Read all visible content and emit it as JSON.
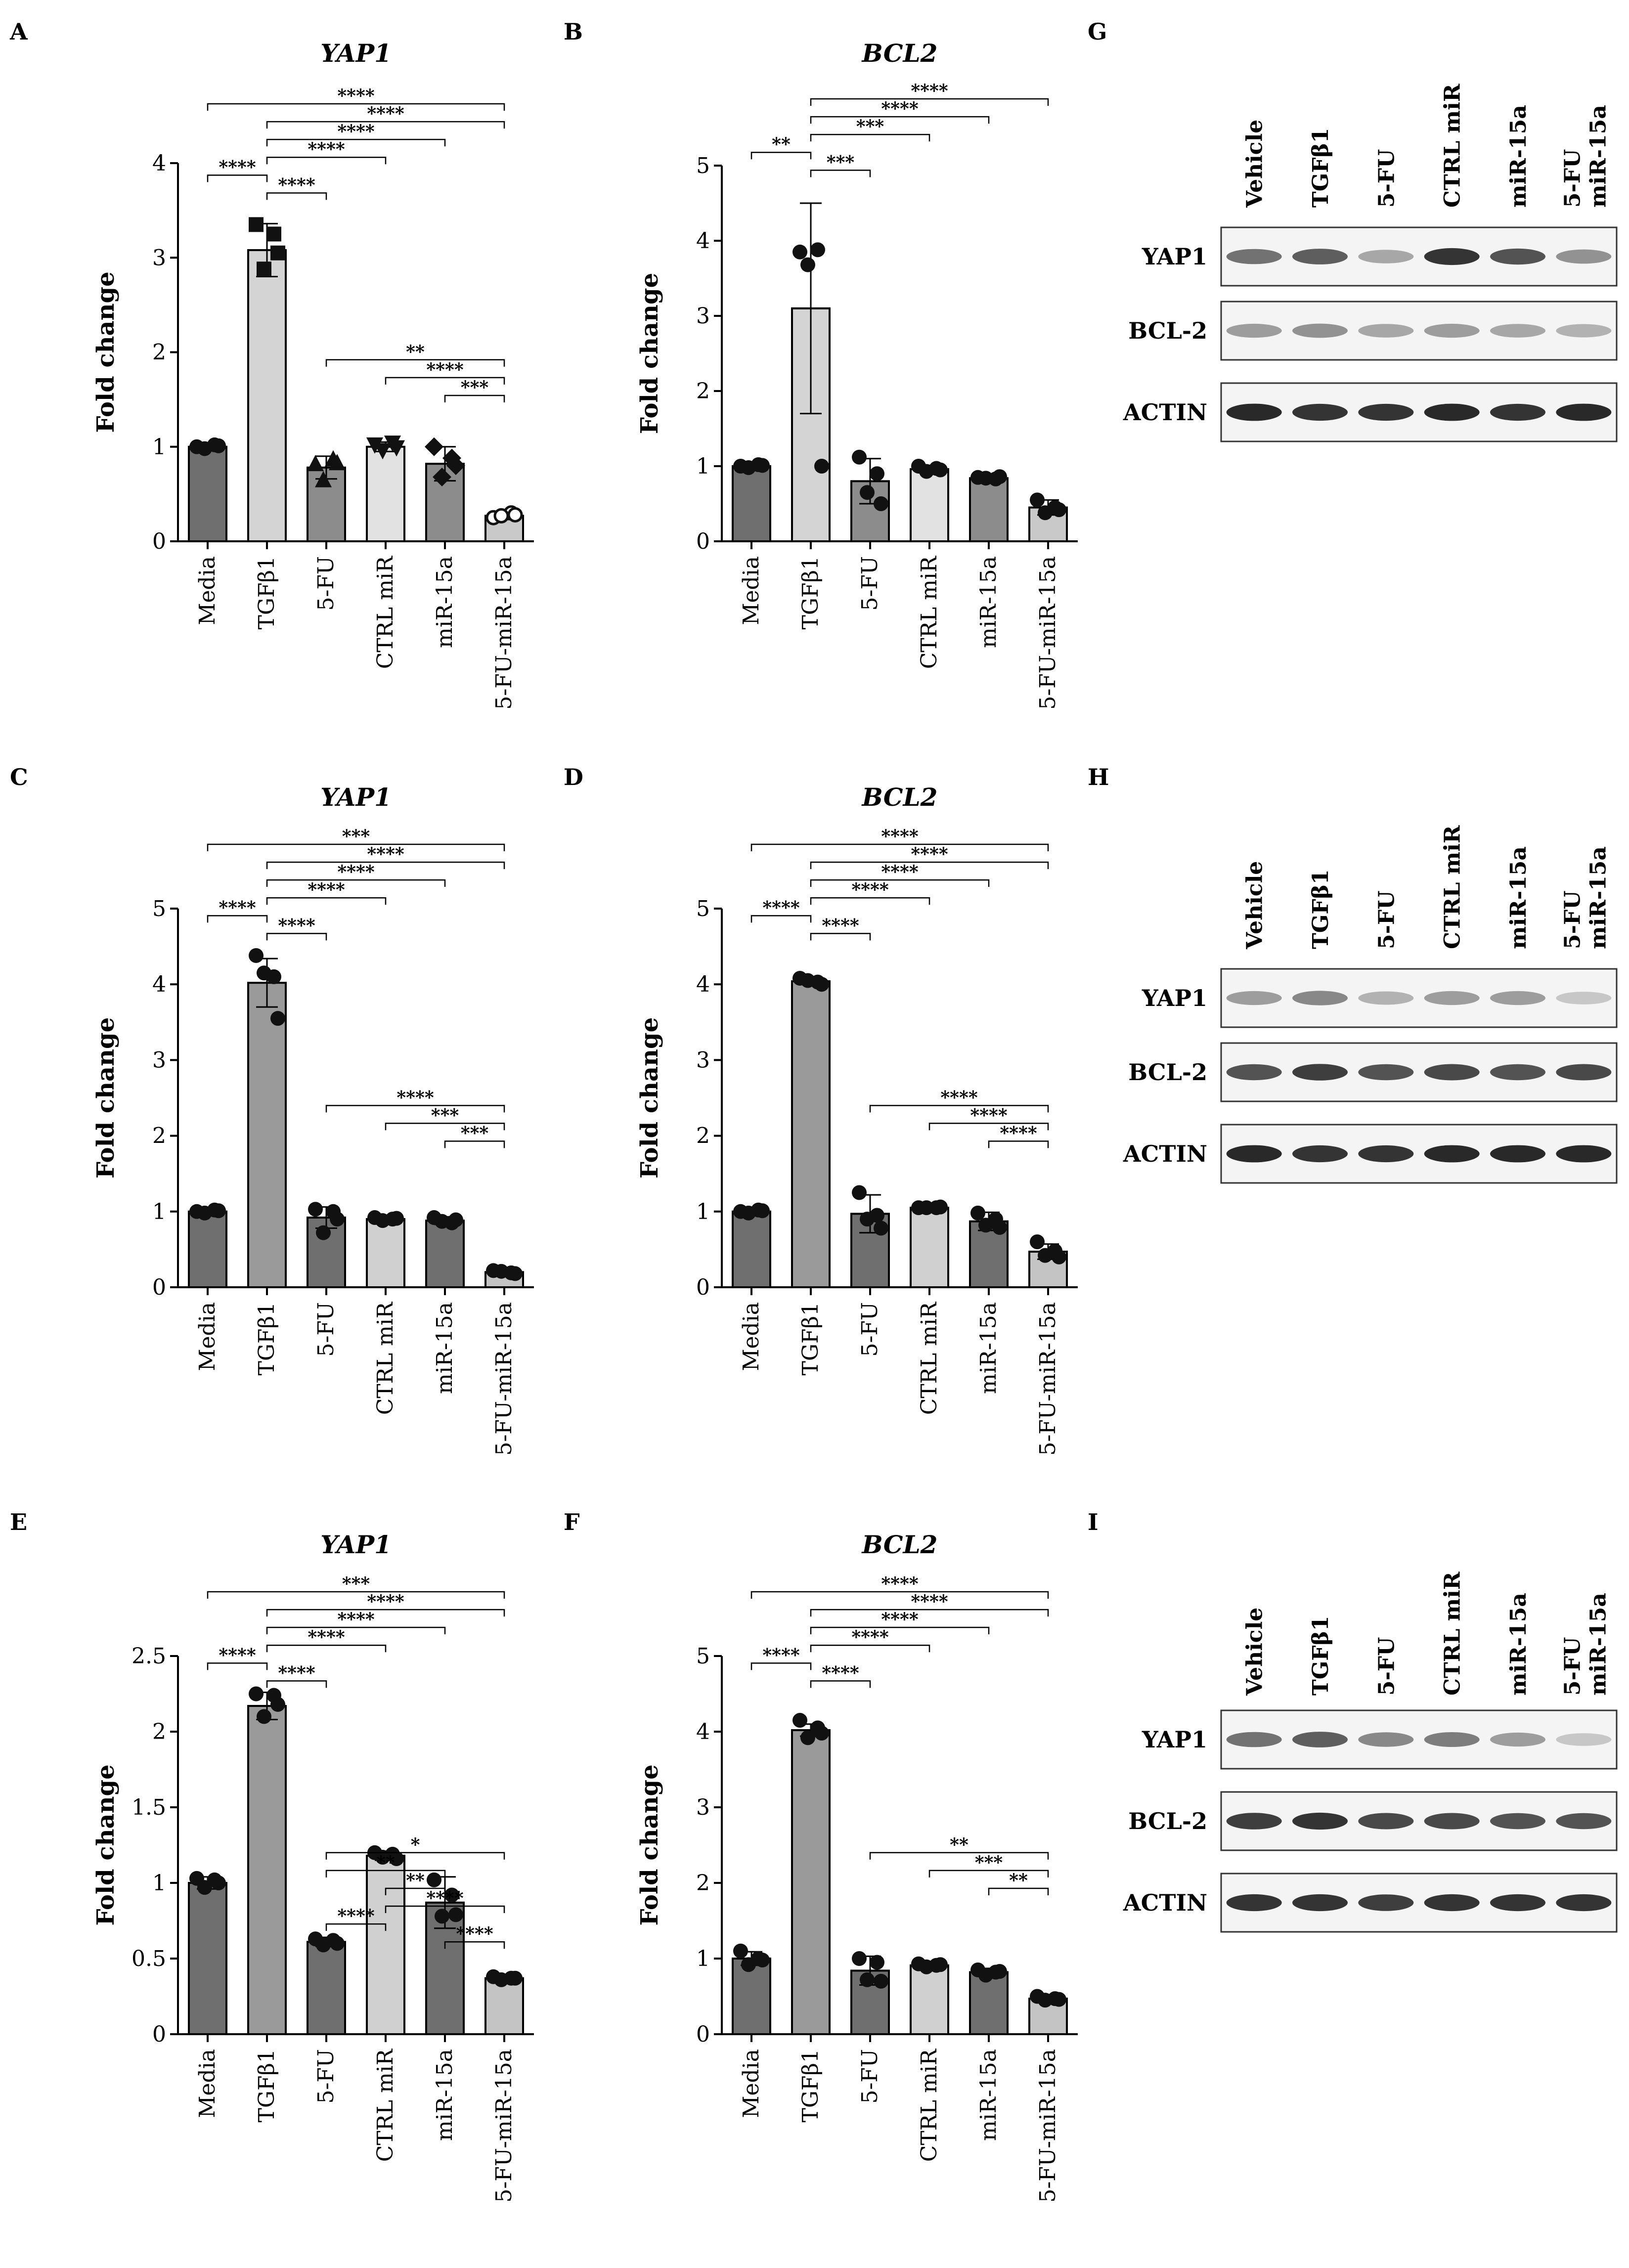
{
  "chart_data": [
    {
      "panel": "A",
      "type": "bar",
      "title": "YAP1",
      "title_italic": true,
      "ylabel": "Fold change",
      "ylim": [
        0,
        4
      ],
      "yticks": [
        "0",
        "1",
        "2",
        "3",
        "4"
      ],
      "ytick_values": [
        0,
        1,
        2,
        3,
        4
      ],
      "categories": [
        "Media",
        "TGFβ1",
        "5-FU",
        "CTRL miR",
        "miR-15a",
        "5-FU-miR-15a"
      ],
      "values": [
        1.0,
        3.08,
        0.78,
        1.0,
        0.82,
        0.27
      ],
      "errors": [
        0.03,
        0.28,
        0.12,
        0.05,
        0.18,
        0.04
      ],
      "points": [
        [
          1.0,
          1.02,
          0.98,
          1.01
        ],
        [
          3.35,
          3.25,
          2.88,
          3.05
        ],
        [
          0.82,
          0.87,
          0.65,
          0.83
        ],
        [
          1.02,
          1.04,
          0.96,
          0.99
        ],
        [
          1.0,
          0.88,
          0.68,
          0.8
        ],
        [
          0.25,
          0.3,
          0.27,
          0.28
        ]
      ],
      "bar_colors": [
        "#6f6f6f",
        "#d4d4d4",
        "#8c8c8c",
        "#e2e2e2",
        "#8c8c8c",
        "#c9c9c9"
      ],
      "markers": [
        "circle",
        "square",
        "triangle",
        "triangle-down",
        "diamond",
        "circle-open"
      ],
      "brackets": [
        {
          "from": 0,
          "to": 5,
          "label": "****"
        },
        {
          "from": 1,
          "to": 5,
          "label": "****"
        },
        {
          "from": 1,
          "to": 4,
          "label": "****"
        },
        {
          "from": 1,
          "to": 3,
          "label": "****"
        },
        {
          "from": 0,
          "to": 1,
          "label": "****"
        },
        {
          "from": 1,
          "to": 2,
          "label": "****"
        },
        {
          "from": 2,
          "to": 5,
          "label": "**"
        },
        {
          "from": 3,
          "to": 5,
          "label": "****"
        },
        {
          "from": 4,
          "to": 5,
          "label": "***"
        }
      ]
    },
    {
      "panel": "B",
      "type": "bar",
      "title": "BCL2",
      "title_italic": true,
      "ylabel": "Fold change",
      "ylim": [
        0,
        5
      ],
      "yticks": [
        "0",
        "1",
        "2",
        "3",
        "4",
        "5"
      ],
      "ytick_values": [
        0,
        1,
        2,
        3,
        4,
        5
      ],
      "categories": [
        "Media",
        "TGFβ1",
        "5-FU",
        "CTRL miR",
        "miR-15a",
        "5-FU-miR-15a"
      ],
      "values": [
        1.0,
        3.1,
        0.8,
        0.96,
        0.84,
        0.45
      ],
      "errors": [
        0.03,
        1.4,
        0.3,
        0.05,
        0.02,
        0.1
      ],
      "points": [
        [
          1.0,
          1.02,
          0.98,
          1.01
        ],
        [
          3.85,
          3.88,
          3.68,
          1.0
        ],
        [
          1.12,
          0.9,
          0.65,
          0.5
        ],
        [
          1.0,
          0.97,
          0.93,
          0.95
        ],
        [
          0.85,
          0.83,
          0.84,
          0.86
        ],
        [
          0.55,
          0.45,
          0.38,
          0.42
        ]
      ],
      "bar_colors": [
        "#6f6f6f",
        "#d4d4d4",
        "#8c8c8c",
        "#e2e2e2",
        "#8c8c8c",
        "#c9c9c9"
      ],
      "markers": [
        "circle",
        "circle",
        "circle",
        "circle",
        "circle",
        "circle"
      ],
      "brackets": [
        {
          "from": 1,
          "to": 5,
          "label": "****"
        },
        {
          "from": 1,
          "to": 4,
          "label": "****"
        },
        {
          "from": 1,
          "to": 3,
          "label": "***"
        },
        {
          "from": 0,
          "to": 1,
          "label": "**"
        },
        {
          "from": 1,
          "to": 2,
          "label": "***"
        }
      ]
    },
    {
      "panel": "C",
      "type": "bar",
      "title": "YAP1",
      "title_italic": true,
      "ylabel": "Fold change",
      "ylim": [
        0,
        5
      ],
      "yticks": [
        "0",
        "1",
        "2",
        "3",
        "4",
        "5"
      ],
      "ytick_values": [
        0,
        1,
        2,
        3,
        4,
        5
      ],
      "categories": [
        "Media",
        "TGFβ1",
        "5-FU",
        "CTRL miR",
        "miR-15a",
        "5-FU-miR-15a"
      ],
      "values": [
        1.0,
        4.02,
        0.92,
        0.9,
        0.88,
        0.2
      ],
      "errors": [
        0.03,
        0.32,
        0.14,
        0.04,
        0.05,
        0.03
      ],
      "points": [
        [
          1.0,
          1.02,
          0.98,
          1.01
        ],
        [
          4.38,
          4.1,
          4.15,
          3.55
        ],
        [
          1.03,
          1.0,
          0.72,
          0.9
        ],
        [
          0.92,
          0.9,
          0.88,
          0.91
        ],
        [
          0.92,
          0.85,
          0.87,
          0.89
        ],
        [
          0.22,
          0.19,
          0.21,
          0.18
        ]
      ],
      "bar_colors": [
        "#6f6f6f",
        "#9a9a9a",
        "#6f6f6f",
        "#d0d0d0",
        "#6f6f6f",
        "#c4c4c4"
      ],
      "markers": [
        "circle",
        "circle",
        "circle",
        "circle",
        "circle",
        "circle"
      ],
      "brackets": [
        {
          "from": 0,
          "to": 5,
          "label": "***"
        },
        {
          "from": 1,
          "to": 5,
          "label": "****"
        },
        {
          "from": 1,
          "to": 4,
          "label": "****"
        },
        {
          "from": 1,
          "to": 3,
          "label": "****"
        },
        {
          "from": 0,
          "to": 1,
          "label": "****"
        },
        {
          "from": 1,
          "to": 2,
          "label": "****"
        },
        {
          "from": 2,
          "to": 5,
          "label": "****"
        },
        {
          "from": 3,
          "to": 5,
          "label": "***"
        },
        {
          "from": 4,
          "to": 5,
          "label": "***"
        }
      ]
    },
    {
      "panel": "D",
      "type": "bar",
      "title": "BCL2",
      "title_italic": true,
      "ylabel": "Fold change",
      "ylim": [
        0,
        5
      ],
      "yticks": [
        "0",
        "1",
        "2",
        "3",
        "4",
        "5"
      ],
      "ytick_values": [
        0,
        1,
        2,
        3,
        4,
        5
      ],
      "categories": [
        "Media",
        "TGFβ1",
        "5-FU",
        "CTRL miR",
        "miR-15a",
        "5-FU-miR-15a"
      ],
      "values": [
        1.0,
        4.04,
        0.97,
        1.05,
        0.87,
        0.47
      ],
      "errors": [
        0.03,
        0.04,
        0.25,
        0.01,
        0.12,
        0.1
      ],
      "points": [
        [
          1.0,
          1.02,
          0.98,
          1.01
        ],
        [
          4.08,
          4.03,
          4.05,
          4.0
        ],
        [
          1.25,
          0.95,
          0.9,
          0.78
        ],
        [
          1.05,
          1.05,
          1.05,
          1.06
        ],
        [
          0.98,
          0.9,
          0.82,
          0.79
        ],
        [
          0.6,
          0.48,
          0.42,
          0.4
        ]
      ],
      "bar_colors": [
        "#6f6f6f",
        "#9a9a9a",
        "#6f6f6f",
        "#d0d0d0",
        "#6f6f6f",
        "#c4c4c4"
      ],
      "markers": [
        "circle",
        "circle",
        "circle",
        "circle",
        "circle",
        "circle"
      ],
      "brackets": [
        {
          "from": 0,
          "to": 5,
          "label": "****"
        },
        {
          "from": 1,
          "to": 5,
          "label": "****"
        },
        {
          "from": 1,
          "to": 4,
          "label": "****"
        },
        {
          "from": 1,
          "to": 3,
          "label": "****"
        },
        {
          "from": 0,
          "to": 1,
          "label": "****"
        },
        {
          "from": 1,
          "to": 2,
          "label": "****"
        },
        {
          "from": 2,
          "to": 5,
          "label": "****"
        },
        {
          "from": 3,
          "to": 5,
          "label": "****"
        },
        {
          "from": 4,
          "to": 5,
          "label": "****"
        }
      ]
    },
    {
      "panel": "E",
      "type": "bar",
      "title": "YAP1",
      "title_italic": true,
      "ylabel": "Fold change",
      "ylim": [
        0,
        2.5
      ],
      "yticks": [
        "0",
        "0.5",
        "1",
        "1.5",
        "2",
        "2.5"
      ],
      "ytick_values": [
        0,
        0.5,
        1,
        1.5,
        2,
        2.5
      ],
      "categories": [
        "Media",
        "TGFβ1",
        "5-FU",
        "CTRL miR",
        "miR-15a",
        "5-FU-miR-15a"
      ],
      "values": [
        1.0,
        2.17,
        0.61,
        1.18,
        0.87,
        0.37
      ],
      "errors": [
        0.04,
        0.09,
        0.03,
        0.03,
        0.17,
        0.02
      ],
      "points": [
        [
          1.03,
          1.02,
          0.97,
          1.0
        ],
        [
          2.25,
          2.24,
          2.1,
          2.18
        ],
        [
          0.63,
          0.62,
          0.59,
          0.6
        ],
        [
          1.2,
          1.19,
          1.17,
          1.16
        ],
        [
          1.02,
          0.92,
          0.78,
          0.79
        ],
        [
          0.38,
          0.37,
          0.36,
          0.37
        ]
      ],
      "bar_colors": [
        "#6f6f6f",
        "#9a9a9a",
        "#6f6f6f",
        "#d0d0d0",
        "#6f6f6f",
        "#c4c4c4"
      ],
      "markers": [
        "circle",
        "circle",
        "circle",
        "circle",
        "circle",
        "circle"
      ],
      "brackets": [
        {
          "from": 0,
          "to": 5,
          "label": "***"
        },
        {
          "from": 1,
          "to": 5,
          "label": "****"
        },
        {
          "from": 1,
          "to": 4,
          "label": "****"
        },
        {
          "from": 1,
          "to": 3,
          "label": "****"
        },
        {
          "from": 0,
          "to": 1,
          "label": "****"
        },
        {
          "from": 1,
          "to": 2,
          "label": "****"
        },
        {
          "from": 2,
          "to": 5,
          "label": "*"
        },
        {
          "from": 2,
          "to": 4,
          "label": "**"
        },
        {
          "from": 3,
          "to": 4,
          "label": "**"
        },
        {
          "from": 3,
          "to": 5,
          "label": "****"
        },
        {
          "from": 2,
          "to": 3,
          "label": "****"
        },
        {
          "from": 4,
          "to": 5,
          "label": "****"
        }
      ]
    },
    {
      "panel": "F",
      "type": "bar",
      "title": "BCL2",
      "title_italic": true,
      "ylabel": "Fold change",
      "ylim": [
        0,
        5
      ],
      "yticks": [
        "0",
        "1",
        "2",
        "3",
        "4",
        "5"
      ],
      "ytick_values": [
        0,
        1,
        2,
        3,
        4,
        5
      ],
      "categories": [
        "Media",
        "TGFβ1",
        "5-FU",
        "CTRL miR",
        "miR-15a",
        "5-FU-miR-15a"
      ],
      "values": [
        1.0,
        4.02,
        0.84,
        0.91,
        0.82,
        0.47
      ],
      "errors": [
        0.09,
        0.08,
        0.19,
        0.03,
        0.05,
        0.03
      ],
      "points": [
        [
          1.1,
          1.0,
          0.92,
          0.98
        ],
        [
          4.15,
          4.05,
          3.92,
          3.98
        ],
        [
          1.0,
          0.95,
          0.72,
          0.7
        ],
        [
          0.93,
          0.91,
          0.89,
          0.92
        ],
        [
          0.85,
          0.82,
          0.78,
          0.83
        ],
        [
          0.5,
          0.47,
          0.45,
          0.46
        ]
      ],
      "bar_colors": [
        "#6f6f6f",
        "#9a9a9a",
        "#6f6f6f",
        "#d0d0d0",
        "#6f6f6f",
        "#c4c4c4"
      ],
      "markers": [
        "circle",
        "circle",
        "circle",
        "circle",
        "circle",
        "circle"
      ],
      "brackets": [
        {
          "from": 0,
          "to": 5,
          "label": "****"
        },
        {
          "from": 1,
          "to": 5,
          "label": "****"
        },
        {
          "from": 1,
          "to": 4,
          "label": "****"
        },
        {
          "from": 1,
          "to": 3,
          "label": "****"
        },
        {
          "from": 0,
          "to": 1,
          "label": "****"
        },
        {
          "from": 1,
          "to": 2,
          "label": "****"
        },
        {
          "from": 2,
          "to": 5,
          "label": "**"
        },
        {
          "from": 3,
          "to": 5,
          "label": "***"
        },
        {
          "from": 4,
          "to": 5,
          "label": "**"
        }
      ]
    }
  ],
  "blots": [
    {
      "panel": "G",
      "lanes": [
        "Vehicle",
        "TGFβ1",
        "5-FU",
        "CTRL miR",
        "miR-15a",
        "5-FU miR-15a"
      ],
      "rows": [
        {
          "label": "YAP1",
          "intensity": [
            0.55,
            0.65,
            0.3,
            0.85,
            0.7,
            0.4
          ]
        },
        {
          "label": "BCL-2",
          "intensity": [
            0.35,
            0.4,
            0.3,
            0.35,
            0.3,
            0.25
          ]
        },
        {
          "label": "ACTIN",
          "intensity": [
            0.9,
            0.85,
            0.85,
            0.9,
            0.85,
            0.9
          ]
        }
      ]
    },
    {
      "panel": "H",
      "lanes": [
        "Vehicle",
        "TGFβ1",
        "5-FU",
        "CTRL miR",
        "miR-15a",
        "5-FU miR-15a"
      ],
      "rows": [
        {
          "label": "YAP1",
          "intensity": [
            0.35,
            0.45,
            0.25,
            0.35,
            0.35,
            0.15
          ]
        },
        {
          "label": "BCL-2",
          "intensity": [
            0.7,
            0.8,
            0.7,
            0.75,
            0.7,
            0.75
          ]
        },
        {
          "label": "ACTIN",
          "intensity": [
            0.9,
            0.85,
            0.85,
            0.9,
            0.9,
            0.9
          ]
        }
      ]
    },
    {
      "panel": "I",
      "lanes": [
        "Vehicle",
        "TGFβ1",
        "5-FU",
        "CTRL miR",
        "miR-15a",
        "5-FU miR-15a"
      ],
      "rows": [
        {
          "label": "YAP1",
          "intensity": [
            0.55,
            0.65,
            0.45,
            0.5,
            0.35,
            0.15
          ]
        },
        {
          "label": "BCL-2",
          "intensity": [
            0.8,
            0.85,
            0.75,
            0.75,
            0.7,
            0.7
          ]
        },
        {
          "label": "ACTIN",
          "intensity": [
            0.85,
            0.85,
            0.8,
            0.85,
            0.85,
            0.85
          ]
        }
      ]
    }
  ]
}
